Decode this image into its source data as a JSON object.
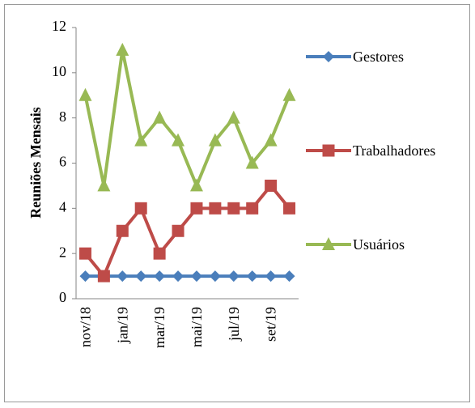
{
  "chart_data": {
    "type": "line",
    "y_label": "Reuniões Mensais",
    "categories": [
      "nov/18",
      null,
      "jan/19",
      null,
      "mar/19",
      null,
      "mai/19",
      null,
      "jul/19",
      null,
      "set/19",
      null
    ],
    "series": [
      {
        "name": "Gestores",
        "color": "#4a7ebb",
        "marker": "diamond",
        "values": [
          1,
          1,
          1,
          1,
          1,
          1,
          1,
          1,
          1,
          1,
          1,
          1
        ]
      },
      {
        "name": "Trabalhadores",
        "color": "#be4b48",
        "marker": "square",
        "values": [
          2,
          1,
          3,
          4,
          2,
          3,
          4,
          4,
          4,
          4,
          5,
          4
        ]
      },
      {
        "name": "Usuários",
        "color": "#98b954",
        "marker": "triangle",
        "values": [
          9,
          5,
          11,
          7,
          8,
          7,
          5,
          7,
          8,
          6,
          7,
          9
        ]
      }
    ],
    "ylim": [
      0,
      12
    ],
    "yticks": [
      0,
      2,
      4,
      6,
      8,
      10,
      12
    ],
    "grid": false,
    "legend": "right"
  }
}
